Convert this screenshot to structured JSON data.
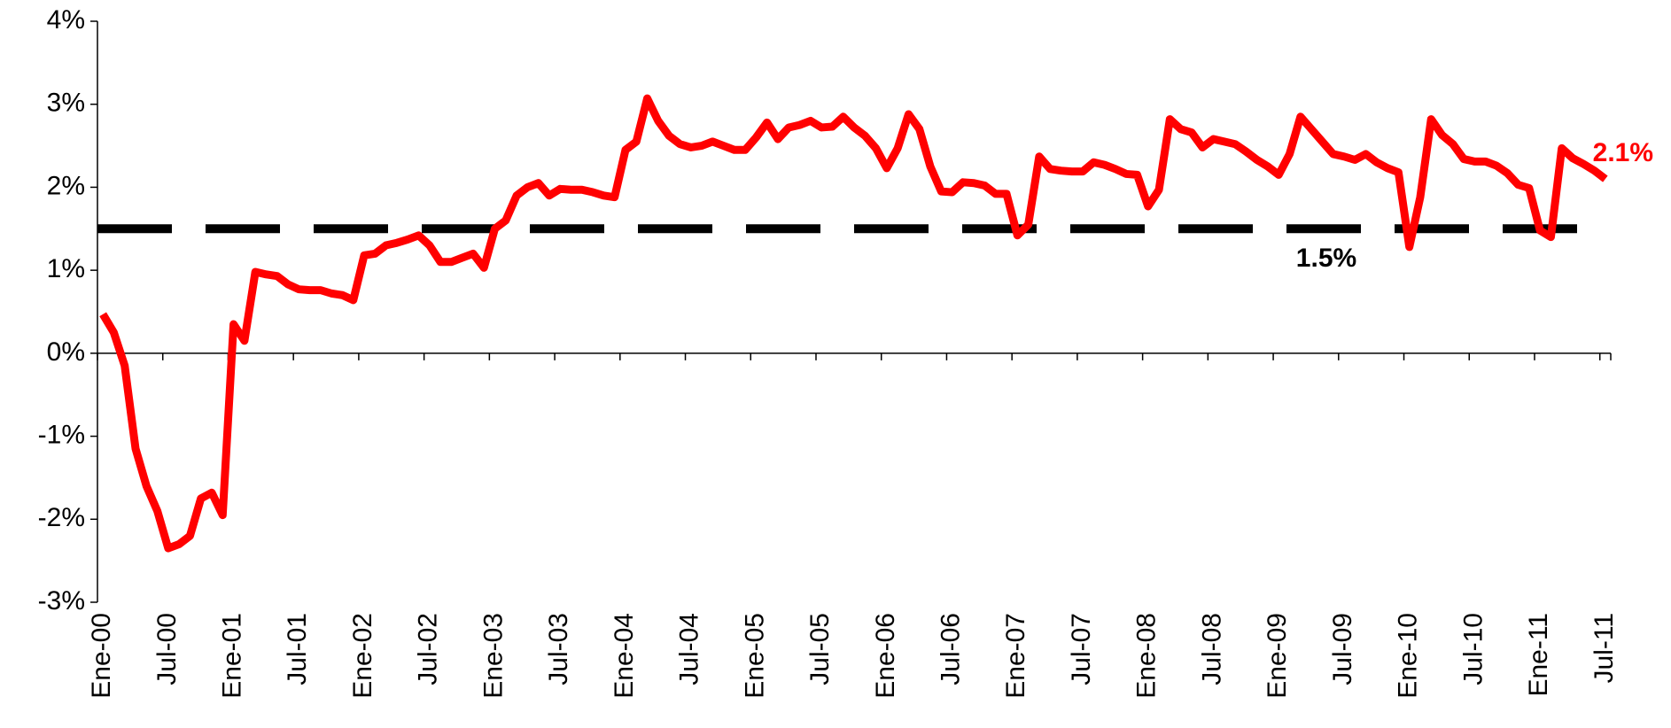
{
  "chart_data": {
    "type": "line",
    "categories": [
      "Ene-00",
      null,
      null,
      null,
      null,
      null,
      "Jul-00",
      null,
      null,
      null,
      null,
      null,
      "Ene-01",
      null,
      null,
      null,
      null,
      null,
      "Jul-01",
      null,
      null,
      null,
      null,
      null,
      "Ene-02",
      null,
      null,
      null,
      null,
      null,
      "Jul-02",
      null,
      null,
      null,
      null,
      null,
      "Ene-03",
      null,
      null,
      null,
      null,
      null,
      "Jul-03",
      null,
      null,
      null,
      null,
      null,
      "Ene-04",
      null,
      null,
      null,
      null,
      null,
      "Jul-04",
      null,
      null,
      null,
      null,
      null,
      "Ene-05",
      null,
      null,
      null,
      null,
      null,
      "Jul-05",
      null,
      null,
      null,
      null,
      null,
      "Ene-06",
      null,
      null,
      null,
      null,
      null,
      "Jul-06",
      null,
      null,
      null,
      null,
      null,
      "Ene-07",
      null,
      null,
      null,
      null,
      null,
      "Jul-07",
      null,
      null,
      null,
      null,
      null,
      "Ene-08",
      null,
      null,
      null,
      null,
      null,
      "Jul-08",
      null,
      null,
      null,
      null,
      null,
      "Ene-09",
      null,
      null,
      null,
      null,
      null,
      "Jul-09",
      null,
      null,
      null,
      null,
      null,
      "Ene-10",
      null,
      null,
      null,
      null,
      null,
      "Jul-10",
      null,
      null,
      null,
      null,
      null,
      "Ene-11",
      null,
      null,
      null,
      null,
      null,
      "Jul-11"
    ],
    "series": [
      {
        "color": "#ff0000",
        "values": [
          0.47,
          0.25,
          -0.15,
          -1.15,
          -1.6,
          -1.9,
          -2.35,
          -2.3,
          -2.2,
          -1.75,
          -1.68,
          -1.95,
          0.35,
          0.15,
          0.98,
          0.95,
          0.93,
          0.83,
          0.77,
          0.76,
          0.76,
          0.72,
          0.7,
          0.64,
          1.18,
          1.2,
          1.3,
          1.33,
          1.37,
          1.42,
          1.3,
          1.1,
          1.1,
          1.15,
          1.2,
          1.03,
          1.5,
          1.6,
          1.9,
          2.0,
          2.05,
          1.9,
          1.98,
          1.97,
          1.97,
          1.94,
          1.9,
          1.88,
          2.45,
          2.55,
          3.07,
          2.8,
          2.62,
          2.52,
          2.48,
          2.5,
          2.55,
          2.5,
          2.45,
          2.45,
          2.6,
          2.78,
          2.58,
          2.72,
          2.75,
          2.8,
          2.72,
          2.73,
          2.85,
          2.72,
          2.62,
          2.47,
          2.23,
          2.47,
          2.88,
          2.7,
          2.25,
          1.95,
          1.94,
          2.06,
          2.05,
          2.02,
          1.92,
          1.92,
          1.42,
          1.55,
          2.37,
          2.22,
          2.2,
          2.19,
          2.19,
          2.3,
          2.27,
          2.22,
          2.16,
          2.15,
          1.77,
          1.97,
          2.82,
          2.7,
          2.66,
          2.48,
          2.58,
          2.55,
          2.52,
          2.43,
          2.33,
          2.25,
          2.15,
          2.4,
          2.85,
          2.7,
          2.55,
          2.4,
          2.37,
          2.33,
          2.4,
          2.3,
          2.23,
          2.18,
          1.28,
          1.88,
          2.82,
          2.63,
          2.52,
          2.34,
          2.31,
          2.31,
          2.26,
          2.17,
          2.03,
          1.99,
          1.48,
          1.4,
          2.47,
          2.35,
          2.28,
          2.2,
          2.1
        ],
        "value_labels": [
          null,
          null,
          null,
          null,
          null,
          null,
          null,
          null,
          null,
          null,
          null,
          null,
          null,
          null,
          null,
          null,
          null,
          null,
          null,
          null,
          null,
          null,
          null,
          null,
          null,
          null,
          null,
          null,
          null,
          null,
          null,
          null,
          null,
          null,
          null,
          null,
          null,
          null,
          null,
          null,
          null,
          null,
          null,
          null,
          null,
          null,
          null,
          null,
          null,
          null,
          null,
          null,
          null,
          null,
          null,
          null,
          null,
          null,
          null,
          null,
          null,
          null,
          null,
          null,
          null,
          null,
          null,
          null,
          null,
          null,
          null,
          null,
          null,
          null,
          null,
          null,
          null,
          null,
          null,
          null,
          null,
          null,
          null,
          null,
          null,
          null,
          null,
          null,
          null,
          null,
          null,
          null,
          null,
          null,
          null,
          null,
          null,
          null,
          null,
          null,
          null,
          null,
          null,
          null,
          null,
          null,
          null,
          null,
          null,
          null,
          null,
          null,
          null,
          null,
          null,
          null,
          null,
          null,
          null,
          null,
          null,
          null,
          null,
          null,
          null,
          null,
          null,
          null,
          null,
          null,
          null,
          null,
          null,
          null,
          null,
          null,
          null,
          null,
          "2.1%"
        ]
      }
    ],
    "reference_line": {
      "value": 1.5,
      "label": "1.5%",
      "color": "#000000"
    },
    "ylim": [
      -3,
      4
    ],
    "yticks": [
      {
        "value": -3,
        "label": "-3%"
      },
      {
        "value": -2,
        "label": "-2%"
      },
      {
        "value": -1,
        "label": "-1%"
      },
      {
        "value": 0,
        "label": "0%"
      },
      {
        "value": 1,
        "label": "1%"
      },
      {
        "value": 2,
        "label": "2%"
      },
      {
        "value": 3,
        "label": "3%"
      },
      {
        "value": 4,
        "label": "4%"
      }
    ],
    "grid": false
  }
}
